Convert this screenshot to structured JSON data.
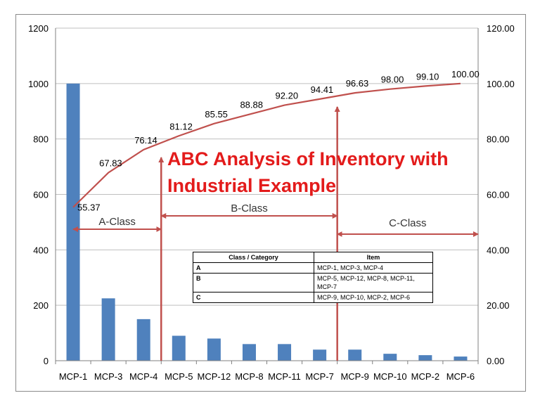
{
  "chart_data": {
    "type": "bar+line",
    "title": "ABC Analysis of Inventory with Industrial Example",
    "categories": [
      "MCP-1",
      "MCP-3",
      "MCP-4",
      "MCP-5",
      "MCP-12",
      "MCP-8",
      "MCP-11",
      "MCP-7",
      "MCP-9",
      "MCP-10",
      "MCP-2",
      "MCP-6"
    ],
    "bar_values": [
      1000,
      225,
      150,
      90,
      80,
      60,
      60,
      40,
      40,
      25,
      20,
      15
    ],
    "cumulative_percent": [
      55.37,
      67.83,
      76.14,
      81.12,
      85.55,
      88.88,
      92.2,
      94.41,
      96.63,
      98.0,
      99.1,
      100.0
    ],
    "cumulative_labels": [
      "55.37",
      "67.83",
      "76.14",
      "81.12",
      "85.55",
      "88.88",
      "92.20",
      "94.41",
      "96.63",
      "98.00",
      "99.10",
      "100.00"
    ],
    "y_left": {
      "min": 0,
      "max": 1200,
      "ticks": [
        "0",
        "200",
        "400",
        "600",
        "800",
        "1000",
        "1200"
      ]
    },
    "y_right": {
      "min": 0,
      "max": 120,
      "ticks": [
        "0.00",
        "20.00",
        "40.00",
        "60.00",
        "80.00",
        "100.00",
        "120.00"
      ]
    },
    "grid": true,
    "bar_color": "#4f81bd",
    "line_color": "#c0504d",
    "annotation_color": "#c0504d",
    "title_color": "#e31b1b",
    "class_spans": [
      {
        "label": "A-Class",
        "from": "MCP-1",
        "to": "MCP-4"
      },
      {
        "label": "B-Class",
        "from": "MCP-5",
        "to": "MCP-7"
      },
      {
        "label": "C-Class",
        "from": "MCP-9",
        "to": "MCP-6"
      }
    ],
    "table": {
      "headers": [
        "Class / Category",
        "Item"
      ],
      "rows": [
        [
          "A",
          "MCP-1, MCP-3, MCP-4"
        ],
        [
          "B",
          "MCP-5, MCP-12, MCP-8, MCP-11, MCP-7"
        ],
        [
          "C",
          "MCP-9, MCP-10, MCP-2, MCP-6"
        ]
      ]
    }
  }
}
